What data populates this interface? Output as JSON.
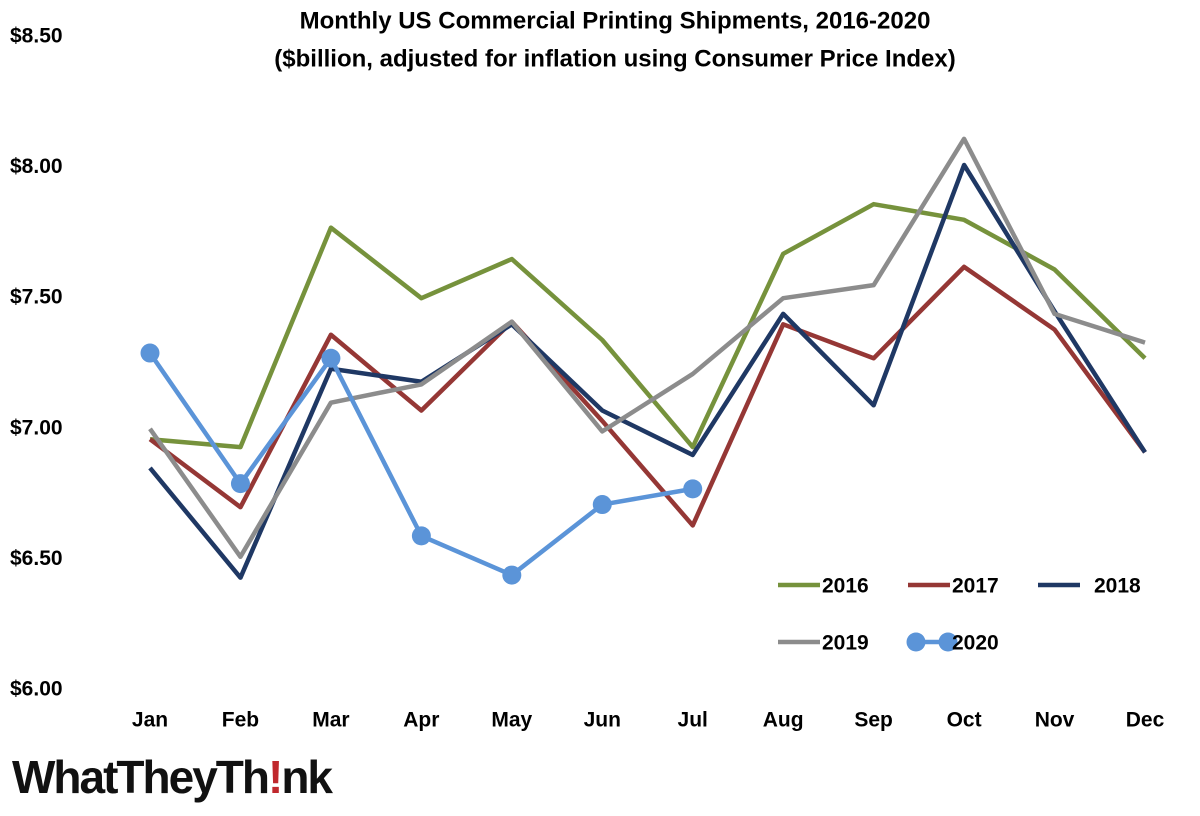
{
  "chart_data": {
    "type": "line",
    "title": "Monthly US Commercial Printing Shipments, 2016-2020",
    "subtitle": "($billion, adjusted for inflation using Consumer Price Index)",
    "categories": [
      "Jan",
      "Feb",
      "Mar",
      "Apr",
      "May",
      "Jun",
      "Jul",
      "Aug",
      "Sep",
      "Oct",
      "Nov",
      "Dec"
    ],
    "series": [
      {
        "name": "2016",
        "color": "#76923c",
        "markers": false,
        "values": [
          6.96,
          6.93,
          7.77,
          7.5,
          7.65,
          7.34,
          6.93,
          7.67,
          7.86,
          7.8,
          7.61,
          7.27
        ]
      },
      {
        "name": "2017",
        "color": "#953735",
        "markers": false,
        "values": [
          6.96,
          6.7,
          7.36,
          7.07,
          7.41,
          7.03,
          6.63,
          7.4,
          7.27,
          7.62,
          7.38,
          6.91
        ]
      },
      {
        "name": "2018",
        "color": "#1f3864",
        "markers": false,
        "values": [
          6.85,
          6.43,
          7.23,
          7.18,
          7.4,
          7.07,
          6.9,
          7.44,
          7.09,
          8.01,
          7.45,
          6.91
        ]
      },
      {
        "name": "2019",
        "color": "#8c8c8c",
        "markers": false,
        "values": [
          7.0,
          6.51,
          7.1,
          7.17,
          7.41,
          6.99,
          7.21,
          7.5,
          7.55,
          8.11,
          7.44,
          7.33
        ]
      },
      {
        "name": "2020",
        "color": "#5b94d8",
        "markers": true,
        "values": [
          7.29,
          6.79,
          7.27,
          6.59,
          6.44,
          6.71,
          6.77,
          null,
          null,
          null,
          null,
          null
        ]
      }
    ],
    "ylim": [
      6.0,
      8.5
    ],
    "yticks": [
      {
        "value": 6.0,
        "label": "$6.00"
      },
      {
        "value": 6.5,
        "label": "$6.50"
      },
      {
        "value": 7.0,
        "label": "$7.00"
      },
      {
        "value": 7.5,
        "label": "$7.50"
      },
      {
        "value": 8.0,
        "label": "$8.00"
      },
      {
        "value": 8.5,
        "label": "$8.50"
      }
    ],
    "grid": false,
    "legend": "lower right"
  },
  "brand": [
    "WhatTheyTh",
    "!",
    "nk"
  ]
}
